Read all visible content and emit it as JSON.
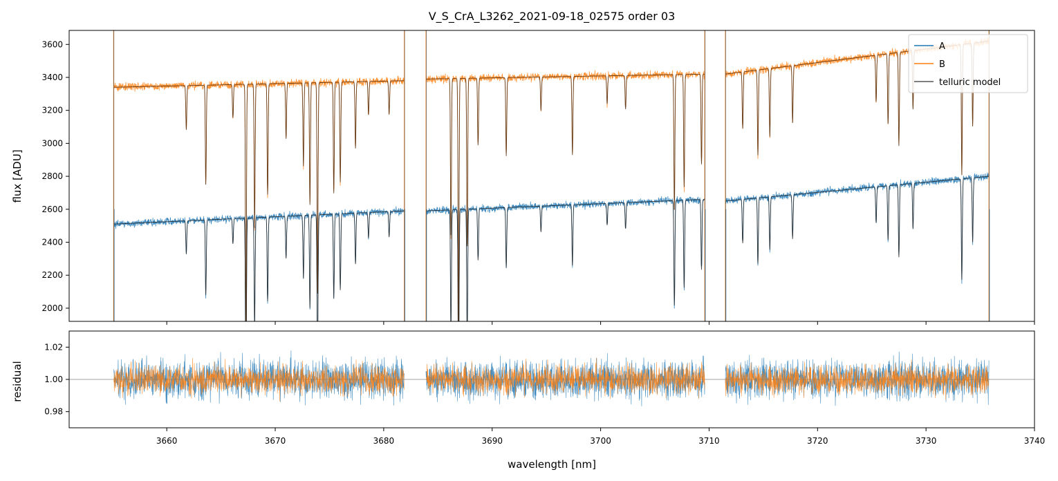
{
  "chart_data": [
    {
      "panel": "top",
      "type": "line",
      "title": "V_S_CrA_L3262_2021-09-18_02575  order 03",
      "xlabel": "",
      "ylabel": "flux [ADU]",
      "xlim": [
        3651,
        3740
      ],
      "ylim": [
        1920,
        3685
      ],
      "x_ticks": [
        3660,
        3670,
        3680,
        3690,
        3700,
        3710,
        3720,
        3730,
        3740
      ],
      "y_ticks": [
        2000,
        2200,
        2400,
        2600,
        2800,
        3000,
        3200,
        3400,
        3600
      ],
      "y_tick_labels": [
        "2000",
        "2200",
        "2400",
        "2600",
        "2800",
        "3000",
        "3200",
        "3400",
        "3600"
      ],
      "grid": false,
      "legend_position": "top-right",
      "legend": [
        "A",
        "B",
        "telluric model"
      ],
      "segments": [
        {
          "x": [
            3655.1,
            3681.9
          ],
          "continuum_A": [
            2510,
            2590
          ],
          "continuum_B": [
            3340,
            3380
          ]
        },
        {
          "x": [
            3683.9,
            3709.6
          ],
          "continuum_A": [
            2590,
            2660
          ],
          "continuum_B": [
            3390,
            3420
          ]
        },
        {
          "x": [
            3711.5,
            3735.8
          ],
          "continuum_A": [
            2650,
            2800
          ],
          "continuum_B": [
            3420,
            3620
          ]
        }
      ],
      "absorption_lines": [
        {
          "x": 3661.8,
          "depth": 0.08
        },
        {
          "x": 3663.6,
          "depth": 0.18
        },
        {
          "x": 3666.1,
          "depth": 0.06
        },
        {
          "x": 3667.3,
          "depth": 0.45
        },
        {
          "x": 3668.1,
          "depth": 0.26
        },
        {
          "x": 3669.3,
          "depth": 0.2
        },
        {
          "x": 3671.0,
          "depth": 0.1
        },
        {
          "x": 3672.6,
          "depth": 0.15
        },
        {
          "x": 3673.2,
          "depth": 0.22
        },
        {
          "x": 3673.9,
          "depth": 0.38
        },
        {
          "x": 3675.4,
          "depth": 0.2
        },
        {
          "x": 3676.0,
          "depth": 0.18
        },
        {
          "x": 3677.4,
          "depth": 0.12
        },
        {
          "x": 3678.6,
          "depth": 0.06
        },
        {
          "x": 3680.5,
          "depth": 0.06
        },
        {
          "x": 3686.2,
          "depth": 0.28
        },
        {
          "x": 3686.9,
          "depth": 0.45
        },
        {
          "x": 3687.7,
          "depth": 0.3
        },
        {
          "x": 3688.7,
          "depth": 0.12
        },
        {
          "x": 3691.3,
          "depth": 0.14
        },
        {
          "x": 3694.5,
          "depth": 0.06
        },
        {
          "x": 3697.4,
          "depth": 0.14
        },
        {
          "x": 3700.6,
          "depth": 0.05
        },
        {
          "x": 3702.3,
          "depth": 0.06
        },
        {
          "x": 3706.8,
          "depth": 0.24
        },
        {
          "x": 3707.7,
          "depth": 0.2
        },
        {
          "x": 3709.3,
          "depth": 0.16
        },
        {
          "x": 3713.1,
          "depth": 0.1
        },
        {
          "x": 3714.5,
          "depth": 0.15
        },
        {
          "x": 3715.6,
          "depth": 0.12
        },
        {
          "x": 3717.7,
          "depth": 0.1
        },
        {
          "x": 3725.4,
          "depth": 0.08
        },
        {
          "x": 3726.5,
          "depth": 0.12
        },
        {
          "x": 3727.5,
          "depth": 0.16
        },
        {
          "x": 3728.8,
          "depth": 0.1
        },
        {
          "x": 3733.3,
          "depth": 0.22
        },
        {
          "x": 3734.3,
          "depth": 0.14
        }
      ],
      "series": [
        {
          "name": "A",
          "color": "#1f77b4"
        },
        {
          "name": "B",
          "color": "#ff7f0e"
        },
        {
          "name": "telluric model",
          "color": "#555555"
        }
      ]
    },
    {
      "panel": "bottom",
      "type": "line",
      "title": "",
      "xlabel": "wavelength [nm]",
      "ylabel": "residual",
      "xlim": [
        3651,
        3740
      ],
      "ylim": [
        0.97,
        1.03
      ],
      "x_ticks": [
        3660,
        3670,
        3680,
        3690,
        3700,
        3710,
        3720,
        3730,
        3740
      ],
      "x_tick_labels": [
        "3660",
        "3670",
        "3680",
        "3690",
        "3700",
        "3710",
        "3720",
        "3730",
        "3740"
      ],
      "y_ticks": [
        0.98,
        1.0,
        1.02
      ],
      "y_tick_labels": [
        "0.98",
        "1.00",
        "1.02"
      ],
      "reference_line": 1.0,
      "grid": false,
      "residual_scatter_A": 0.012,
      "residual_scatter_B": 0.009,
      "segments": [
        {
          "x": [
            3655.1,
            3681.9
          ]
        },
        {
          "x": [
            3683.9,
            3709.6
          ]
        },
        {
          "x": [
            3711.5,
            3735.8
          ]
        }
      ],
      "series": [
        {
          "name": "A",
          "color": "#1f77b4"
        },
        {
          "name": "B",
          "color": "#ff7f0e"
        }
      ]
    }
  ]
}
